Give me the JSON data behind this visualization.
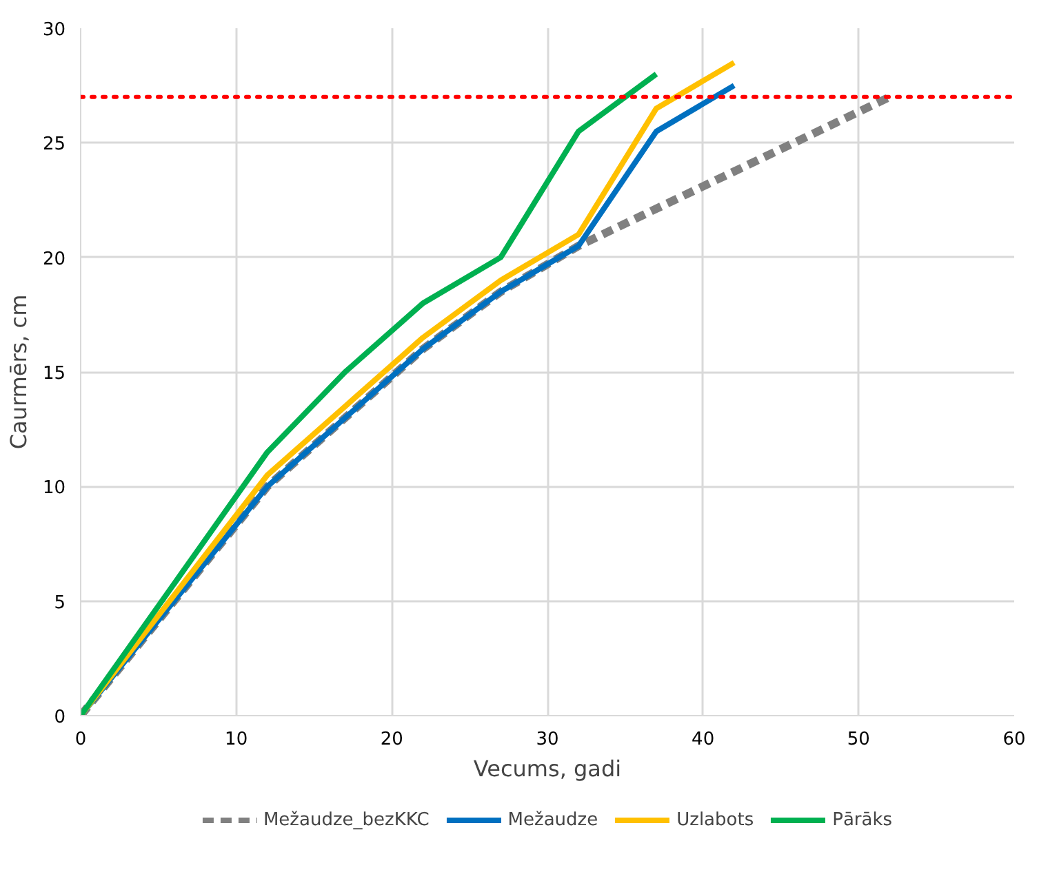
{
  "chart_data": {
    "type": "line",
    "xlabel": "Vecums, gadi",
    "ylabel": "Caurmērs, cm",
    "xlim": [
      0,
      60
    ],
    "xticks": [
      0,
      10,
      20,
      30,
      40,
      50,
      60
    ],
    "ylim": [
      0,
      30
    ],
    "yticks": [
      0,
      5,
      10,
      15,
      20,
      25,
      30
    ],
    "grid": true,
    "legend": "bottom",
    "marker": "none",
    "ref_lines": [
      {
        "axis": "y",
        "value": 27,
        "color": "#ff0000",
        "line_style": "dotted"
      }
    ],
    "series": [
      {
        "name": "Mežaudze_bezKKC",
        "color": "#808080",
        "line_style": "dashed",
        "x": [
          0,
          12,
          17,
          22,
          27,
          32,
          52
        ],
        "values": [
          0,
          10,
          13,
          16,
          18.5,
          20.5,
          27
        ]
      },
      {
        "name": "Mežaudze",
        "color": "#0070c0",
        "x": [
          0,
          12,
          17,
          22,
          27,
          32,
          37,
          42
        ],
        "values": [
          0,
          10,
          13,
          16,
          18.5,
          20.5,
          25.5,
          27.5
        ]
      },
      {
        "name": "Uzlabots",
        "color": "#ffc000",
        "x": [
          0,
          12,
          17,
          22,
          27,
          32,
          37,
          42
        ],
        "values": [
          0,
          10.5,
          13.5,
          16.5,
          19,
          21,
          26.5,
          28.5
        ]
      },
      {
        "name": "Pārāks",
        "color": "#00b050",
        "x": [
          0,
          12,
          17,
          22,
          27,
          32,
          37
        ],
        "values": [
          0,
          11.5,
          15,
          18,
          20,
          25.5,
          28
        ]
      }
    ]
  }
}
